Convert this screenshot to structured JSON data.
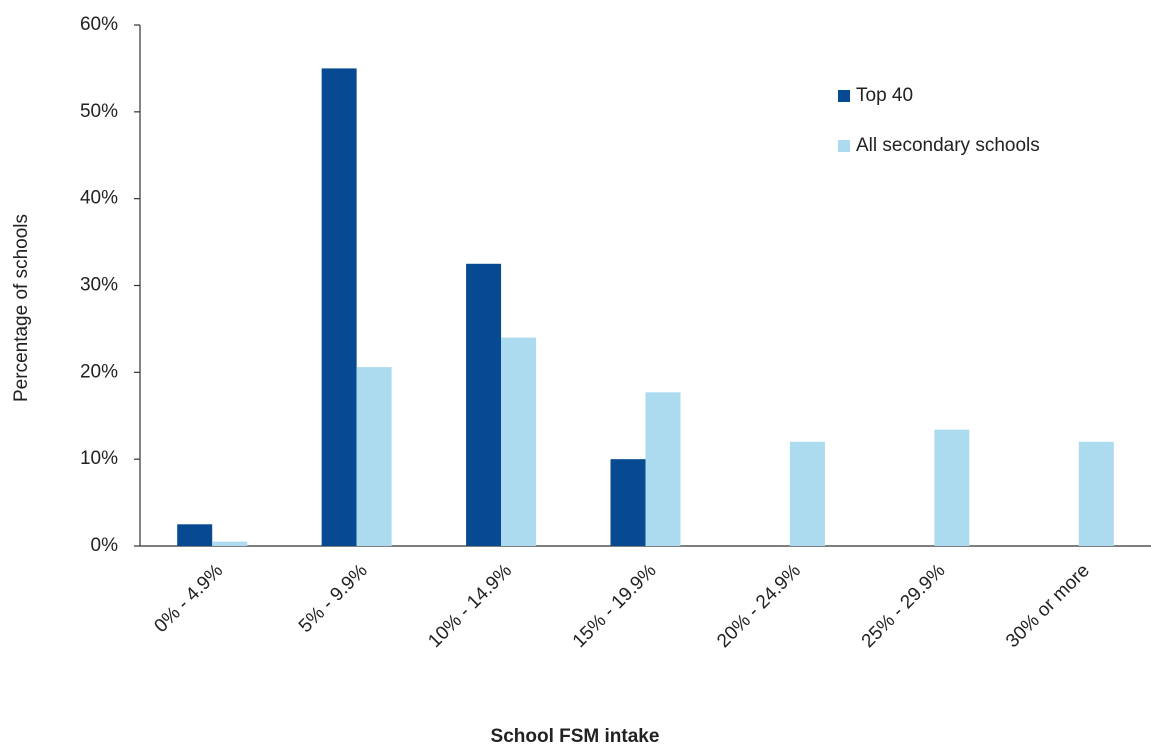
{
  "chart_data": {
    "type": "bar",
    "x_label": "School FSM intake",
    "y_label": "Percentage of schools",
    "categories": [
      "0% - 4.9%",
      "5% - 9.9%",
      "10% - 14.9%",
      "15% - 19.9%",
      "20% - 24.9%",
      "25% - 29.9%",
      "30% or more"
    ],
    "series": [
      {
        "name": "Top 40",
        "color": "#084a92",
        "values": [
          2.5,
          55,
          32.5,
          10,
          0,
          0,
          0
        ]
      },
      {
        "name": "All secondary schools",
        "color": "#acdaef",
        "values": [
          0.5,
          20.6,
          24,
          17.7,
          12,
          13.4,
          12
        ]
      }
    ],
    "ylim": [
      0,
      60
    ],
    "yticks": [
      {
        "value": 0,
        "label": "0%"
      },
      {
        "value": 10,
        "label": "10%"
      },
      {
        "value": 20,
        "label": "20%"
      },
      {
        "value": 30,
        "label": "30%"
      },
      {
        "value": 40,
        "label": "40%"
      },
      {
        "value": 50,
        "label": "50%"
      },
      {
        "value": 60,
        "label": "60%"
      }
    ],
    "grid": false,
    "legend": "top-right"
  }
}
